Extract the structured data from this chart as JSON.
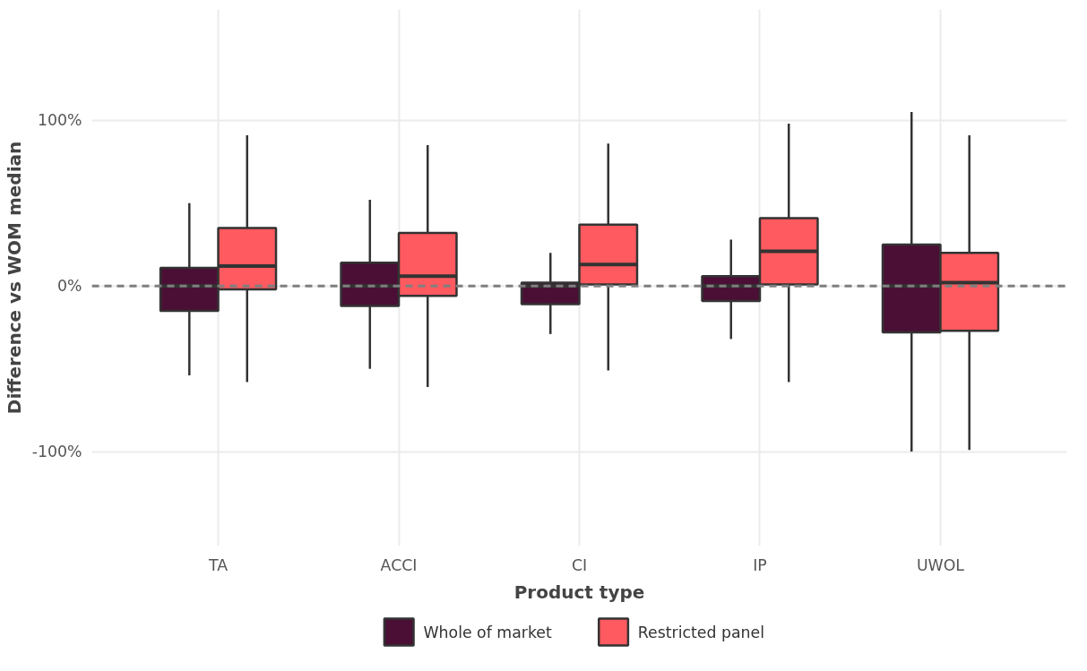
{
  "chart_data": {
    "type": "box",
    "xlabel": "Product type",
    "ylabel": "Difference vs WOM median",
    "categories": [
      "TA",
      "ACCI",
      "CI",
      "IP",
      "UWOL"
    ],
    "series": [
      {
        "name": "Whole of market",
        "color": "#4b0f36",
        "boxes": [
          {
            "low": -54,
            "q1": -15,
            "median": 0,
            "q3": 11,
            "high": 50
          },
          {
            "low": -50,
            "q1": -12,
            "median": 0,
            "q3": 14,
            "high": 52
          },
          {
            "low": -29,
            "q1": -11,
            "median": 0,
            "q3": 2,
            "high": 20
          },
          {
            "low": -32,
            "q1": -9,
            "median": 0,
            "q3": 6,
            "high": 28
          },
          {
            "low": -100,
            "q1": -28,
            "median": 0,
            "q3": 25,
            "high": 105
          }
        ]
      },
      {
        "name": "Restricted panel",
        "color": "#ff5a5f",
        "boxes": [
          {
            "low": -58,
            "q1": -2,
            "median": 12,
            "q3": 35,
            "high": 91
          },
          {
            "low": -61,
            "q1": -6,
            "median": 6,
            "q3": 32,
            "high": 85
          },
          {
            "low": -51,
            "q1": 1,
            "median": 13,
            "q3": 37,
            "high": 86
          },
          {
            "low": -58,
            "q1": 1,
            "median": 21,
            "q3": 41,
            "high": 98
          },
          {
            "low": -99,
            "q1": -27,
            "median": 2,
            "q3": 20,
            "high": 91
          }
        ]
      }
    ],
    "ylim": [
      -157,
      167
    ],
    "yticks": [
      {
        "value": -100,
        "label": "-100%"
      },
      {
        "value": 0,
        "label": "0%"
      },
      {
        "value": 100,
        "label": "100%"
      }
    ],
    "ref_lines": [
      {
        "axis": "y",
        "value": 0,
        "color": "#7f7f7f",
        "line_style": "dashed"
      }
    ],
    "grid": true,
    "legend": "bottom"
  }
}
